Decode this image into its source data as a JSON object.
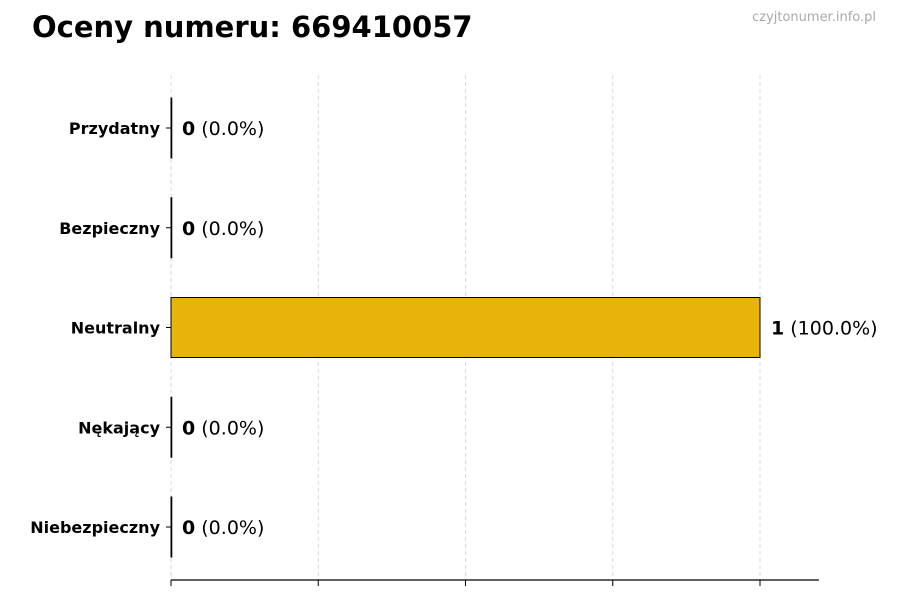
{
  "chart_data": {
    "type": "bar",
    "orientation": "horizontal",
    "title": "Oceny numeru: 669410057",
    "watermark": "czyjtonumer.info.pl",
    "categories": [
      "Przydatny",
      "Bezpieczny",
      "Neutralny",
      "Nękający",
      "Niebezpieczny"
    ],
    "values": [
      0,
      0,
      1,
      0,
      0
    ],
    "percent_labels": [
      "(0.0%)",
      "(0.0%)",
      "(100.0%)",
      "(0.0%)",
      "(0.0%)"
    ],
    "count_labels": [
      "0",
      "0",
      "1",
      "0",
      "0"
    ],
    "xlim": [
      0,
      1.1
    ],
    "x_ticks": [
      0,
      0.25,
      0.5,
      0.75,
      1
    ],
    "x_tick_labels_shown": false,
    "grid": "x, dashed",
    "colors": {
      "bar": "#E8B40A",
      "edge": "#000000",
      "grid": "#d9d9d9"
    }
  }
}
